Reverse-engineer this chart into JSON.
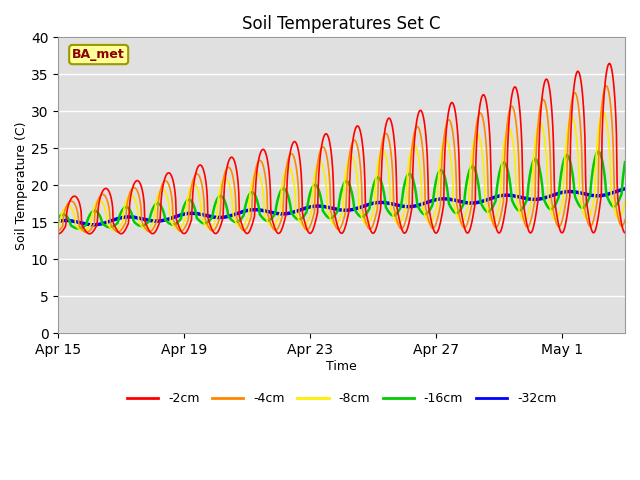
{
  "title": "Soil Temperatures Set C",
  "xlabel": "Time",
  "ylabel": "Soil Temperature (C)",
  "ylim": [
    0,
    40
  ],
  "yticks": [
    0,
    5,
    10,
    15,
    20,
    25,
    30,
    35,
    40
  ],
  "xtick_labels": [
    "Apr 15",
    "Apr 19",
    "Apr 23",
    "Apr 27",
    "May 1"
  ],
  "xtick_days": [
    0,
    4,
    8,
    12,
    16
  ],
  "n_days": 18,
  "colors": {
    "-2cm": "#ff0000",
    "-4cm": "#ff8800",
    "-8cm": "#ffee00",
    "-16cm": "#00cc00",
    "-32cm": "#0000ff"
  },
  "annotation_text": "BA_met",
  "background_color": "#e0e0e0",
  "grid_color": "#ffffff",
  "linewidths": {
    "-2cm": 1.2,
    "-4cm": 1.2,
    "-8cm": 1.2,
    "-16cm": 1.8,
    "-32cm": 2.5
  }
}
